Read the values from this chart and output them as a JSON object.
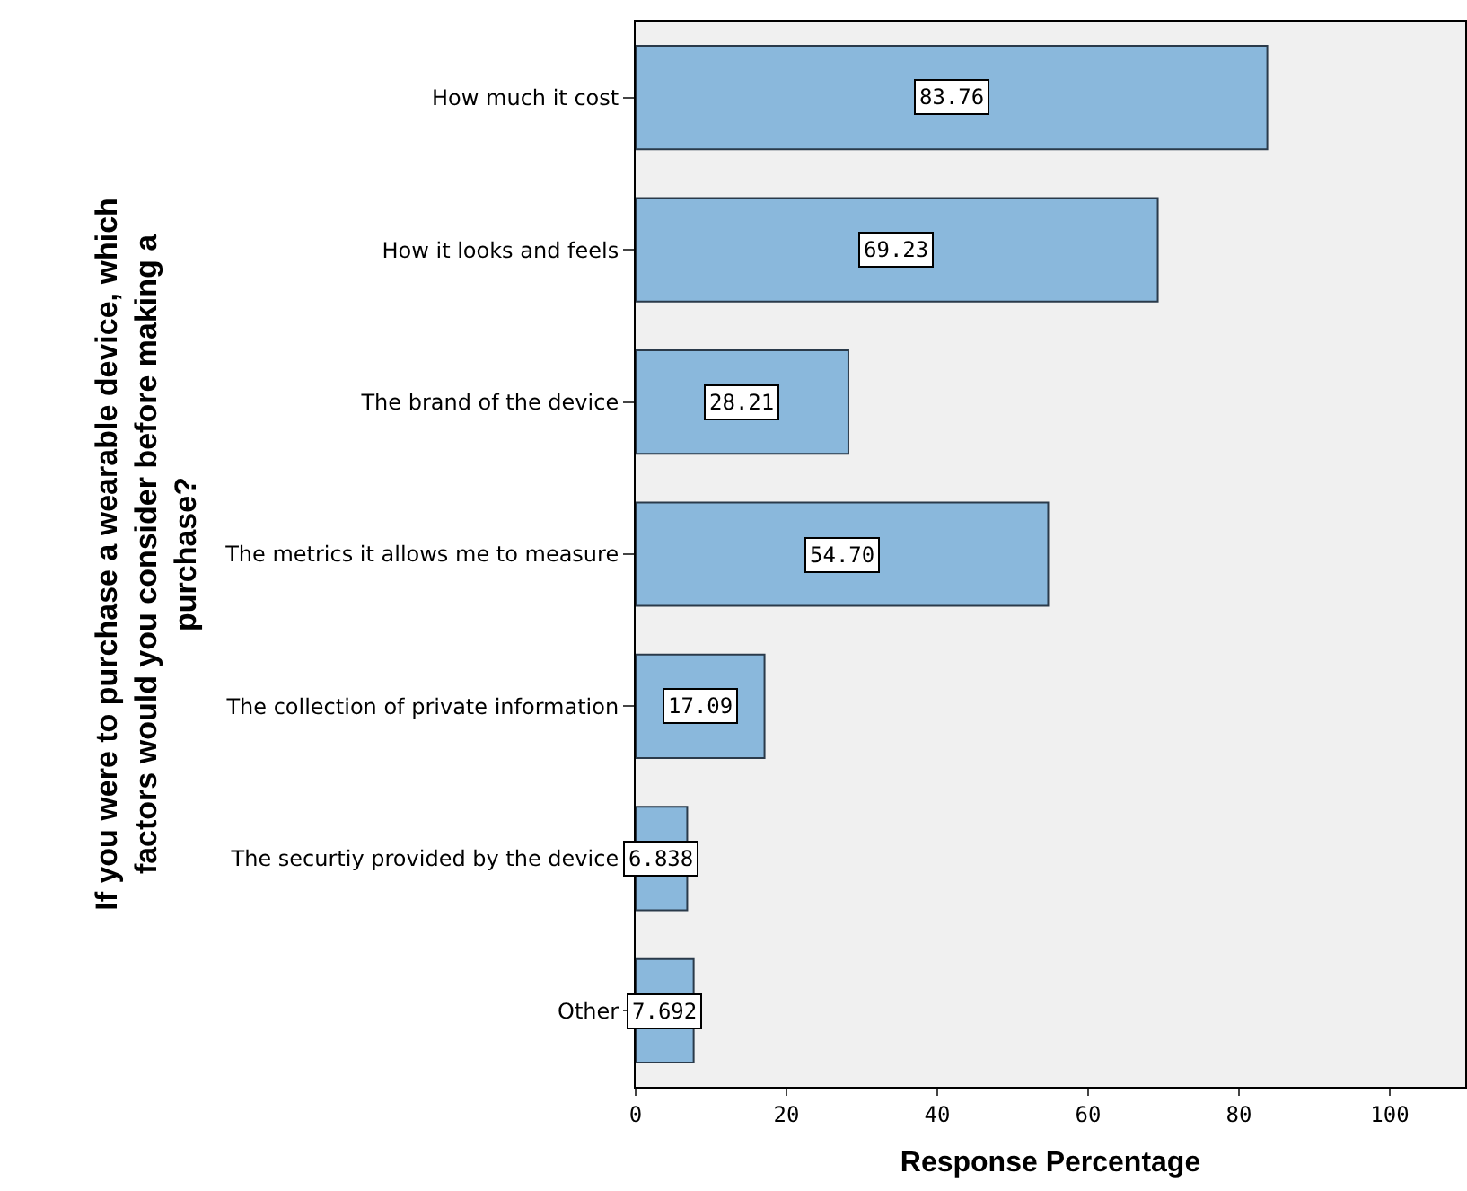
{
  "chart_data": {
    "type": "bar",
    "orientation": "horizontal",
    "xlabel": "Response Percentage",
    "ylabel": "If you were to purchase a wearable device, which factors would you consider before making a purchase?",
    "categories": [
      "How much it cost",
      "How it looks and feels",
      "The brand of the device",
      "The metrics it allows me to measure",
      "The collection of private information",
      "The securtiy provided by the device",
      "Other"
    ],
    "values": [
      83.76,
      69.23,
      28.21,
      54.7,
      17.09,
      6.838,
      7.692
    ],
    "value_labels": [
      "83.76",
      "69.23",
      "28.21",
      "54.70",
      "17.09",
      "6.838",
      "7.692"
    ],
    "color": "#8ab8dc",
    "xlim": [
      0,
      110
    ],
    "xticks": [
      0,
      20,
      40,
      60,
      80,
      100
    ]
  }
}
